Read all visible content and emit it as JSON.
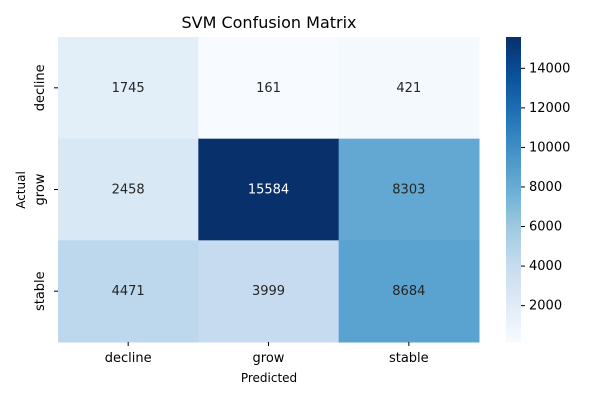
{
  "chart_data": {
    "type": "heatmap",
    "title": "SVM Confusion Matrix",
    "xlabel": "Predicted",
    "ylabel": "Actual",
    "x_categories": [
      "decline",
      "grow",
      "stable"
    ],
    "y_categories": [
      "decline",
      "grow",
      "stable"
    ],
    "values": [
      [
        1745,
        161,
        421
      ],
      [
        2458,
        15584,
        8303
      ],
      [
        4471,
        3999,
        8684
      ]
    ],
    "colorbar": {
      "min": 161,
      "max": 15584,
      "ticks": [
        2000,
        4000,
        6000,
        8000,
        10000,
        12000,
        14000
      ]
    },
    "colormap": [
      "#f7fbff",
      "#deebf7",
      "#c6dbef",
      "#9ecae1",
      "#6baed6",
      "#4292c6",
      "#2171b5",
      "#08519c",
      "#08306b"
    ],
    "grid": false
  }
}
